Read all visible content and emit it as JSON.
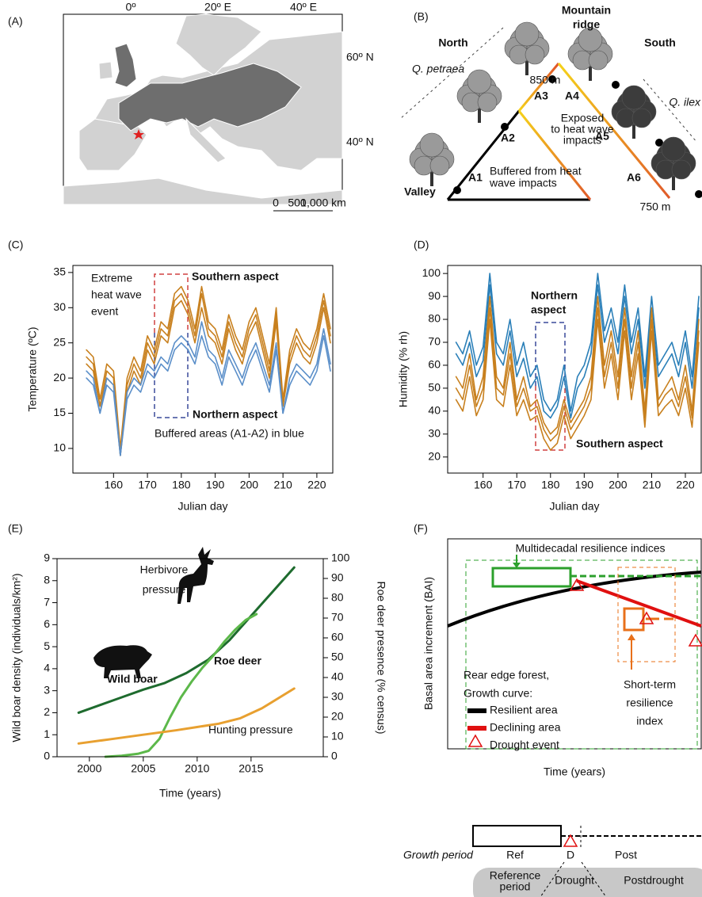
{
  "map": {
    "panel": "(A)",
    "lon_labels": [
      "0º",
      "20º E",
      "40º E"
    ],
    "lat_labels": [
      "60º N",
      "40º N"
    ],
    "scale_labels": [
      "0",
      "500",
      "1,000 km"
    ]
  },
  "diagram_b": {
    "panel": "(B)",
    "ridge": [
      "Mountain",
      "ridge"
    ],
    "north": "North",
    "south": "South",
    "left_species": "Q. petraea",
    "right_species": "Q. ilex",
    "top_elevation": "850 m",
    "bottom_elevation": "750 m",
    "valley": "Valley",
    "plots": [
      "A1",
      "A2",
      "A3",
      "A4",
      "A5",
      "A6"
    ],
    "exposed": [
      "Exposed",
      "to heat wave",
      "impacts"
    ],
    "buffered": [
      "Buffered from heat",
      "wave impacts"
    ]
  },
  "diagram_f": {
    "panel": "(F)",
    "ylabel": "Basal area increment (BAI)",
    "xlabel": "Time (years)",
    "multidecadal": "Multidecadal resilience indices",
    "short_term": [
      "Short-term",
      "resilience",
      "index"
    ],
    "legend_title": [
      "Rear edge forest,",
      "Growth curve:"
    ],
    "legend": [
      "Resilient area",
      "Declining area",
      "Drought event"
    ],
    "growth_period": "Growth period",
    "periods": [
      "Ref",
      "D",
      "Post"
    ],
    "period_names": [
      [
        "Reference",
        "period"
      ],
      "Drought",
      "Postdrought"
    ]
  },
  "chart_data": [
    {
      "type": "line",
      "panel": "(C)",
      "ylabel": "Temperature (ºC)",
      "xlabel": "Julian day",
      "xlim": [
        148,
        224.7
      ],
      "ylim": [
        6.5,
        36
      ],
      "xticks": [
        160,
        170,
        180,
        190,
        200,
        210,
        220
      ],
      "yticks": [
        10,
        15,
        20,
        25,
        30,
        35
      ],
      "annotations": [
        [
          "Extreme",
          "heat wave",
          "event"
        ],
        [
          "Southern aspect"
        ],
        [
          "Northern aspect"
        ],
        [
          "Buffered areas (A1-A2) in blue"
        ]
      ],
      "x": [
        152,
        154,
        156,
        158,
        160,
        162,
        164,
        166,
        168,
        170,
        172,
        174,
        176,
        178,
        180,
        182,
        184,
        186,
        188,
        190,
        192,
        194,
        196,
        198,
        200,
        202,
        204,
        206,
        208,
        210,
        212,
        214,
        216,
        218,
        220,
        222,
        224
      ],
      "series": [
        {
          "color": "#c8801e",
          "values": [
            24,
            23,
            17,
            22,
            21,
            10,
            20,
            23,
            21,
            26,
            24,
            28,
            27,
            32,
            33,
            31,
            27,
            33,
            28,
            27,
            24,
            29,
            26,
            24,
            28,
            30,
            26,
            22,
            30,
            17,
            24,
            27,
            25,
            24,
            27,
            32,
            27
          ]
        },
        {
          "color": "#c8801e",
          "values": [
            23,
            22,
            16,
            21,
            20,
            9,
            19,
            22,
            20,
            25,
            23,
            27,
            26,
            31,
            32,
            30,
            26,
            32,
            27,
            26,
            23,
            28,
            25,
            23,
            27,
            29,
            25,
            21,
            29,
            16,
            23,
            26,
            24,
            23,
            26,
            31,
            26
          ]
        },
        {
          "color": "#c8801e",
          "values": [
            22,
            21,
            16,
            20,
            19,
            9,
            18,
            21,
            19,
            24,
            22,
            26,
            25,
            30,
            31,
            29,
            25,
            30,
            26,
            25,
            22,
            27,
            24,
            22,
            26,
            28,
            24,
            20,
            28,
            16,
            22,
            25,
            23,
            22,
            25,
            30,
            25
          ]
        },
        {
          "color": "#5b8fc9",
          "values": [
            21,
            20,
            15,
            20,
            19,
            9,
            18,
            20,
            19,
            22,
            21,
            23,
            22,
            25,
            26,
            25,
            23,
            28,
            24,
            23,
            20,
            24,
            22,
            20,
            23,
            25,
            22,
            19,
            25,
            15,
            20,
            22,
            21,
            20,
            22,
            27,
            22
          ]
        },
        {
          "color": "#5b8fc9",
          "values": [
            20,
            19,
            15,
            19,
            18,
            9,
            17,
            19,
            18,
            21,
            20,
            22,
            21,
            24,
            25,
            24,
            22,
            26,
            23,
            22,
            19,
            23,
            21,
            19,
            22,
            24,
            21,
            18,
            24,
            15,
            19,
            21,
            20,
            19,
            21,
            26,
            21
          ]
        }
      ]
    },
    {
      "type": "line",
      "panel": "(D)",
      "ylabel": "Humidity (% rh)",
      "xlabel": "Julian day",
      "xlim": [
        149.5,
        224.7
      ],
      "ylim": [
        13,
        103.5
      ],
      "xticks": [
        160,
        170,
        180,
        190,
        200,
        210,
        220
      ],
      "yticks": [
        20,
        30,
        40,
        50,
        60,
        70,
        80,
        90,
        100
      ],
      "annotations": [
        [
          "Northern",
          "aspect"
        ],
        [
          "Southern aspect"
        ]
      ],
      "x": [
        152,
        154,
        156,
        158,
        160,
        162,
        164,
        166,
        168,
        170,
        172,
        174,
        176,
        178,
        180,
        182,
        184,
        186,
        188,
        190,
        192,
        194,
        196,
        198,
        200,
        202,
        204,
        206,
        208,
        210,
        212,
        214,
        216,
        218,
        220,
        222,
        224
      ],
      "series": [
        {
          "color": "#2a7fb8",
          "values": [
            70,
            65,
            75,
            60,
            68,
            100,
            70,
            65,
            80,
            60,
            70,
            55,
            60,
            45,
            40,
            45,
            60,
            40,
            55,
            60,
            70,
            100,
            75,
            85,
            70,
            95,
            70,
            85,
            55,
            90,
            60,
            65,
            70,
            60,
            75,
            55,
            90
          ]
        },
        {
          "color": "#2a7fb8",
          "values": [
            65,
            60,
            70,
            55,
            62,
            95,
            65,
            60,
            75,
            55,
            63,
            50,
            55,
            40,
            37,
            42,
            55,
            37,
            50,
            55,
            65,
            95,
            70,
            80,
            65,
            90,
            65,
            80,
            50,
            85,
            55,
            60,
            65,
            55,
            70,
            50,
            85
          ]
        },
        {
          "color": "#c8801e",
          "values": [
            55,
            50,
            65,
            45,
            55,
            90,
            55,
            50,
            70,
            45,
            55,
            42,
            45,
            35,
            30,
            33,
            45,
            35,
            40,
            45,
            55,
            90,
            60,
            75,
            55,
            85,
            55,
            75,
            40,
            85,
            45,
            50,
            55,
            45,
            60,
            40,
            80
          ]
        },
        {
          "color": "#c8801e",
          "values": [
            50,
            45,
            60,
            42,
            50,
            85,
            50,
            47,
            65,
            42,
            50,
            40,
            42,
            32,
            27,
            30,
            42,
            32,
            37,
            42,
            50,
            85,
            55,
            70,
            50,
            80,
            50,
            70,
            37,
            80,
            42,
            47,
            50,
            42,
            55,
            37,
            75
          ]
        },
        {
          "color": "#c8801e",
          "values": [
            45,
            40,
            55,
            38,
            45,
            80,
            45,
            42,
            60,
            38,
            45,
            36,
            38,
            28,
            23,
            26,
            38,
            28,
            33,
            38,
            45,
            80,
            50,
            65,
            45,
            75,
            45,
            65,
            33,
            75,
            38,
            42,
            45,
            38,
            50,
            33,
            70
          ]
        }
      ]
    },
    {
      "type": "line",
      "panel": "(E)",
      "ylabel": "Wild boar density (individuals/km²)",
      "y2label": "Roe deer presence (% census)",
      "xlabel": "Time (years)",
      "xlim": [
        1997,
        2021.7
      ],
      "ylim": [
        0,
        9
      ],
      "y2lim": [
        0,
        100
      ],
      "xticks": [
        2000,
        2005,
        2010,
        2015
      ],
      "yticks": [
        0,
        1,
        2,
        3,
        4,
        5,
        6,
        7,
        8,
        9
      ],
      "y2ticks": [
        0,
        10,
        20,
        30,
        40,
        50,
        60,
        70,
        80,
        90,
        100
      ],
      "annotations": [
        [
          "Herbivore",
          "pressure"
        ]
      ],
      "series": [
        {
          "name": "Wild boar",
          "color": "#1e6b2e",
          "x": [
            1999,
            2001,
            2003,
            2005,
            2007,
            2009,
            2011,
            2013,
            2015,
            2017,
            2019
          ],
          "values": [
            2.0,
            2.35,
            2.7,
            3.05,
            3.35,
            3.8,
            4.4,
            5.3,
            6.4,
            7.5,
            8.6
          ]
        },
        {
          "name": "Roe deer",
          "color": "#5cb84a",
          "axis": "y2",
          "x": [
            2001.5,
            2003,
            2004.5,
            2005.5,
            2006.5,
            2007.5,
            2008.5,
            2009.5,
            2010.5,
            2011.5,
            2012.5,
            2013.5,
            2014.5,
            2015.5
          ],
          "values": [
            0,
            0.5,
            1.5,
            3,
            9,
            20,
            30,
            38,
            45,
            51,
            58,
            64,
            69,
            72
          ]
        },
        {
          "name": "Hunting pressure",
          "color": "#e8a030",
          "x": [
            1999,
            2002,
            2005,
            2008,
            2010,
            2012,
            2014,
            2016,
            2019
          ],
          "values": [
            0.6,
            0.8,
            1.0,
            1.2,
            1.35,
            1.5,
            1.75,
            2.2,
            3.1
          ]
        }
      ]
    }
  ]
}
